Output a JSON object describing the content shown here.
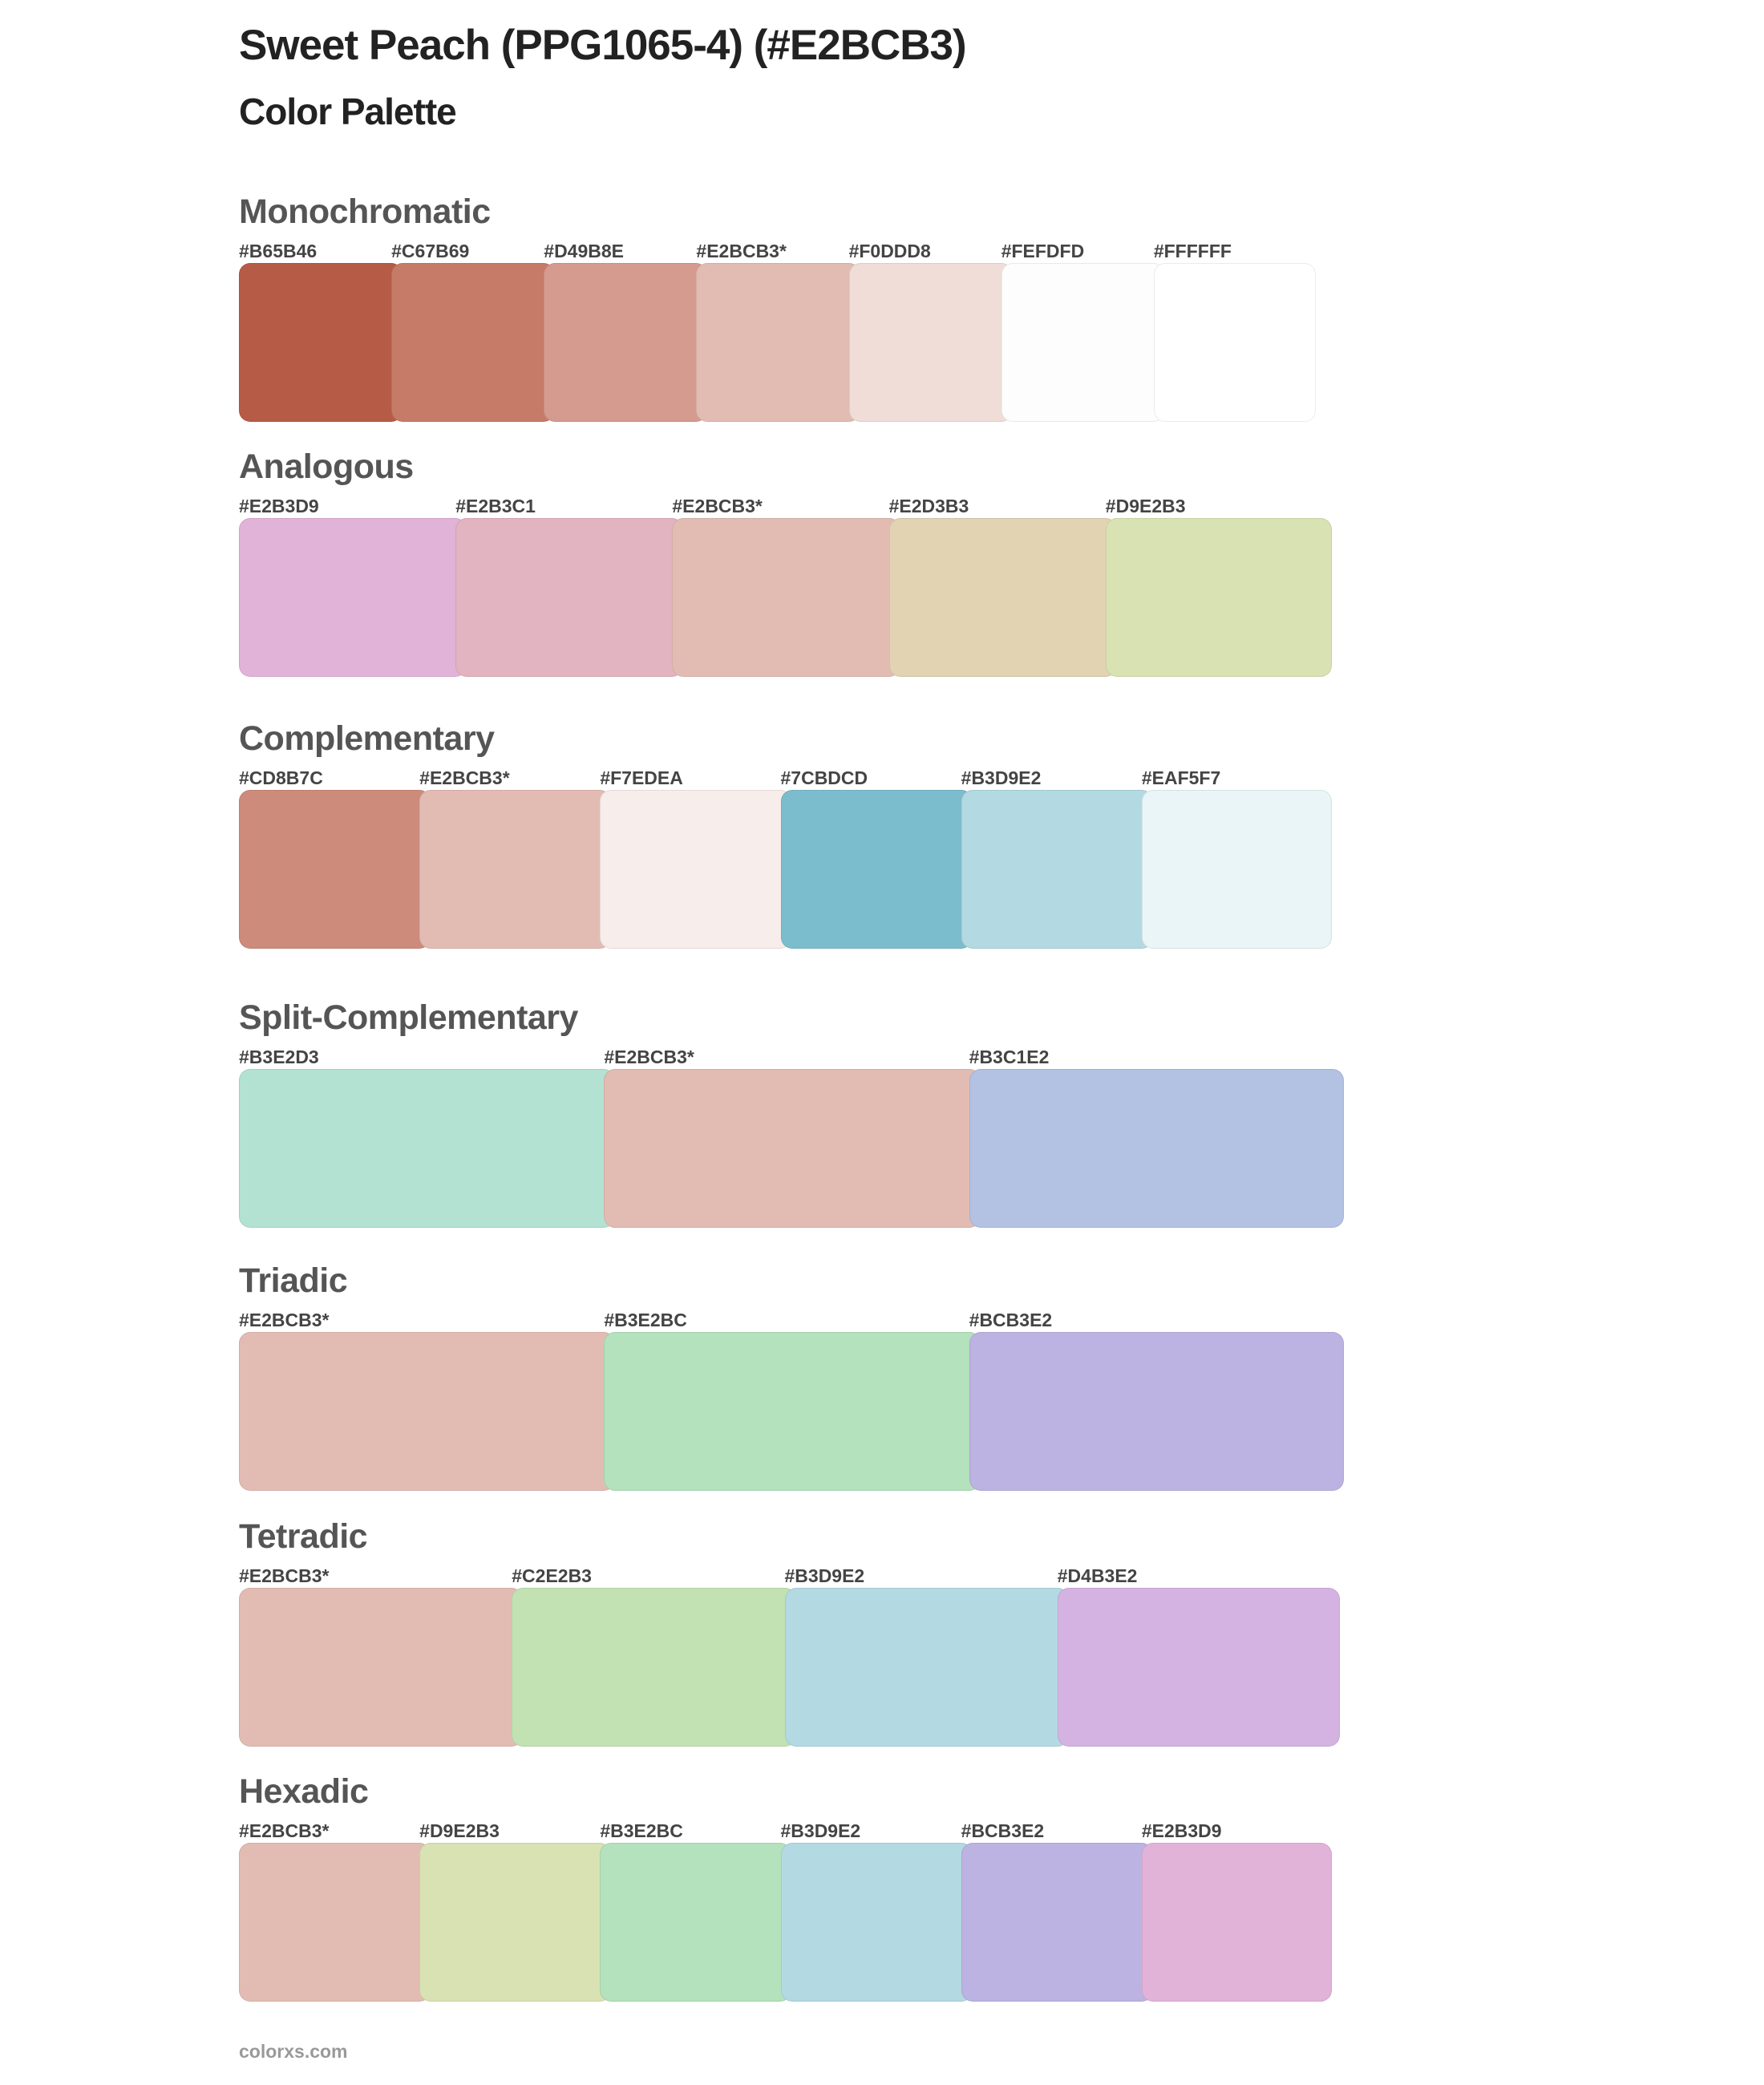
{
  "header": {
    "title": "Sweet Peach (PPG1065-4) (#E2BCB3)",
    "subtitle": "Color Palette"
  },
  "sections": [
    {
      "name": "Monochromatic",
      "colors": [
        {
          "label": "#B65B46",
          "hex": "#B65B46"
        },
        {
          "label": "#C67B69",
          "hex": "#C67B69"
        },
        {
          "label": "#D49B8E",
          "hex": "#D49B8E"
        },
        {
          "label": "#E2BCB3*",
          "hex": "#E2BCB3"
        },
        {
          "label": "#F0DDD8",
          "hex": "#F0DDD8"
        },
        {
          "label": "#FEFDFD",
          "hex": "#FEFDFD"
        },
        {
          "label": "#FFFFFF",
          "hex": "#FFFFFF"
        }
      ]
    },
    {
      "name": "Analogous",
      "colors": [
        {
          "label": "#E2B3D9",
          "hex": "#E2B3D9"
        },
        {
          "label": "#E2B3C1",
          "hex": "#E2B3C1"
        },
        {
          "label": "#E2BCB3*",
          "hex": "#E2BCB3"
        },
        {
          "label": "#E2D3B3",
          "hex": "#E2D3B3"
        },
        {
          "label": "#D9E2B3",
          "hex": "#D9E2B3"
        }
      ]
    },
    {
      "name": "Complementary",
      "colors": [
        {
          "label": "#CD8B7C",
          "hex": "#CD8B7C"
        },
        {
          "label": "#E2BCB3*",
          "hex": "#E2BCB3"
        },
        {
          "label": "#F7EDEA",
          "hex": "#F7EDEA"
        },
        {
          "label": "#7CBDCD",
          "hex": "#7CBDCD"
        },
        {
          "label": "#B3D9E2",
          "hex": "#B3D9E2"
        },
        {
          "label": "#EAF5F7",
          "hex": "#EAF5F7"
        }
      ]
    },
    {
      "name": "Split-Complementary",
      "colors": [
        {
          "label": "#B3E2D3",
          "hex": "#B3E2D3"
        },
        {
          "label": "#E2BCB3*",
          "hex": "#E2BCB3"
        },
        {
          "label": "#B3C1E2",
          "hex": "#B3C1E2"
        }
      ]
    },
    {
      "name": "Triadic",
      "colors": [
        {
          "label": "#E2BCB3*",
          "hex": "#E2BCB3"
        },
        {
          "label": "#B3E2BC",
          "hex": "#B3E2BC"
        },
        {
          "label": "#BCB3E2",
          "hex": "#BCB3E2"
        }
      ]
    },
    {
      "name": "Tetradic",
      "colors": [
        {
          "label": "#E2BCB3*",
          "hex": "#E2BCB3"
        },
        {
          "label": "#C2E2B3",
          "hex": "#C2E2B3"
        },
        {
          "label": "#B3D9E2",
          "hex": "#B3D9E2"
        },
        {
          "label": "#D4B3E2",
          "hex": "#D4B3E2"
        }
      ]
    },
    {
      "name": "Hexadic",
      "colors": [
        {
          "label": "#E2BCB3*",
          "hex": "#E2BCB3"
        },
        {
          "label": "#D9E2B3",
          "hex": "#D9E2B3"
        },
        {
          "label": "#B3E2BC",
          "hex": "#B3E2BC"
        },
        {
          "label": "#B3D9E2",
          "hex": "#B3D9E2"
        },
        {
          "label": "#BCB3E2",
          "hex": "#BCB3E2"
        },
        {
          "label": "#E2B3D9",
          "hex": "#E2B3D9"
        }
      ]
    }
  ],
  "footer": {
    "site": "colorxs.com"
  }
}
